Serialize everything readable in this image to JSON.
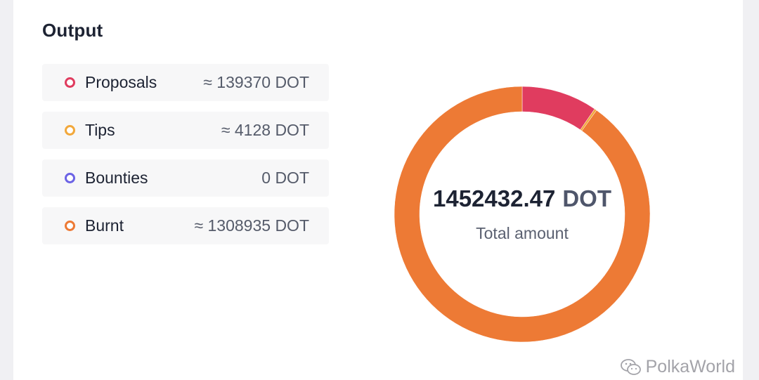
{
  "panel": {
    "title": "Output"
  },
  "legend": [
    {
      "label": "Proposals",
      "value_text": "≈ 139370 DOT",
      "color": "#e03c5f"
    },
    {
      "label": "Tips",
      "value_text": "≈ 4128 DOT",
      "color": "#f2a83b"
    },
    {
      "label": "Bounties",
      "value_text": "0 DOT",
      "color": "#6c63e5"
    },
    {
      "label": "Burnt",
      "value_text": "≈ 1308935 DOT",
      "color": "#ed7a35"
    }
  ],
  "total": {
    "amount": "1452432.47",
    "unit": "DOT",
    "label": "Total amount"
  },
  "chart_data": {
    "type": "pie",
    "donut": true,
    "categories": [
      "Proposals",
      "Tips",
      "Bounties",
      "Burnt"
    ],
    "values": [
      139370,
      4128,
      0,
      1308935
    ],
    "colors": [
      "#e03c5f",
      "#f2a83b",
      "#6c63e5",
      "#ed7a35"
    ],
    "start_angle_deg": 0,
    "direction": "clockwise"
  },
  "watermark": {
    "text": "PolkaWorld"
  }
}
